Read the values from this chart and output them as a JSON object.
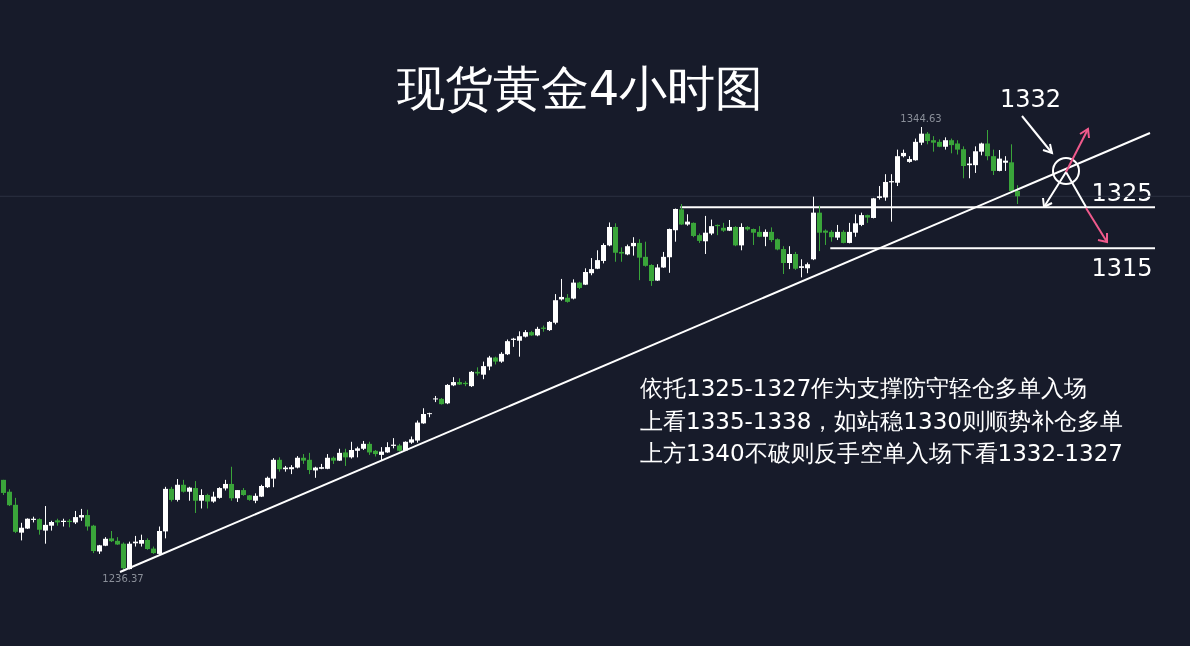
{
  "chart_data": {
    "type": "candlestick",
    "title": "现货黄金4小时图",
    "categories": [
      null,
      null,
      null,
      null,
      null,
      null,
      null,
      null,
      null,
      null,
      null,
      null,
      null,
      null,
      null,
      null,
      null,
      null,
      null,
      null,
      null,
      null,
      null,
      null,
      null,
      null,
      null,
      null,
      null,
      null,
      null,
      null,
      null,
      null,
      null,
      null,
      null,
      null,
      null,
      null,
      null,
      null,
      null,
      null,
      null,
      null,
      null,
      null,
      null,
      null,
      null,
      null,
      null,
      null,
      null,
      null,
      null,
      null,
      null,
      null,
      null,
      null,
      null,
      null,
      null,
      null,
      null,
      null,
      null,
      null,
      null,
      null,
      null,
      null,
      null,
      null,
      null,
      null,
      null,
      null,
      null,
      null,
      null,
      null,
      null,
      null,
      null,
      null,
      null,
      null,
      null,
      null,
      null,
      null,
      null,
      null,
      null,
      null,
      null,
      null,
      null,
      null,
      null,
      null,
      null,
      null,
      null,
      null,
      null,
      null,
      null,
      null,
      null,
      null,
      null,
      null,
      null,
      null,
      null,
      null,
      null,
      null,
      null,
      null,
      null,
      null,
      null,
      null,
      null,
      null,
      null,
      null,
      null,
      null,
      null,
      null,
      null,
      null,
      null,
      null,
      null,
      null,
      null,
      null,
      null,
      null,
      null,
      null,
      null,
      null,
      null,
      null,
      null,
      null,
      null,
      null,
      null,
      null,
      null,
      null,
      null,
      null,
      null,
      null,
      null,
      null,
      null,
      null,
      null,
      null
    ],
    "ohlc": [
      [
        1258.4,
        1258.4,
        1254.7,
        1255.2
      ],
      [
        1255.5,
        1256.1,
        1252.0,
        1252.2
      ],
      [
        1252.3,
        1254.0,
        1245.4,
        1245.7
      ],
      [
        1245.5,
        1247.9,
        1243.6,
        1246.7
      ],
      [
        1246.5,
        1249.0,
        1246.4,
        1248.9
      ],
      [
        1248.6,
        1249.4,
        1248.0,
        1248.9
      ],
      [
        1248.8,
        1249.0,
        1245.0,
        1246.2
      ],
      [
        1246.0,
        1252.0,
        1242.8,
        1247.4
      ],
      [
        1247.2,
        1248.4,
        1246.0,
        1248.1
      ],
      [
        1248.5,
        1248.9,
        1247.2,
        1248.0
      ],
      [
        1248.1,
        1248.9,
        1247.0,
        1248.4
      ],
      [
        1248.4,
        1248.8,
        1246.8,
        1248.1
      ],
      [
        1248.0,
        1250.8,
        1247.6,
        1249.3
      ],
      [
        1249.2,
        1251.3,
        1248.4,
        1249.8
      ],
      [
        1249.8,
        1251.1,
        1246.0,
        1247.0
      ],
      [
        1247.2,
        1247.4,
        1240.5,
        1241.0
      ],
      [
        1240.9,
        1242.5,
        1240.3,
        1242.4
      ],
      [
        1242.3,
        1244.4,
        1242.2,
        1244.0
      ],
      [
        1244.1,
        1245.9,
        1243.2,
        1243.4
      ],
      [
        1243.5,
        1244.4,
        1242.5,
        1242.6
      ],
      [
        1242.8,
        1243.1,
        1236.37,
        1236.8
      ],
      [
        1236.6,
        1243.3,
        1236.5,
        1242.8
      ],
      [
        1242.9,
        1244.7,
        1242.1,
        1243.3
      ],
      [
        1242.8,
        1245.0,
        1242.1,
        1243.7
      ],
      [
        1243.7,
        1244.1,
        1241.3,
        1241.5
      ],
      [
        1241.6,
        1242.1,
        1240.3,
        1240.5
      ],
      [
        1240.3,
        1247.0,
        1239.8,
        1245.9
      ],
      [
        1245.8,
        1256.7,
        1244.1,
        1256.2
      ],
      [
        1256.2,
        1256.7,
        1253.1,
        1253.5
      ],
      [
        1253.5,
        1258.6,
        1253.1,
        1257.2
      ],
      [
        1257.2,
        1258.4,
        1255.3,
        1255.5
      ],
      [
        1255.5,
        1256.7,
        1253.3,
        1256.5
      ],
      [
        1256.4,
        1258.1,
        1250.3,
        1253.3
      ],
      [
        1253.3,
        1256.1,
        1251.4,
        1254.7
      ],
      [
        1254.7,
        1255.0,
        1251.4,
        1253.1
      ],
      [
        1253.1,
        1255.5,
        1252.8,
        1254.3
      ],
      [
        1254.0,
        1256.6,
        1253.8,
        1256.4
      ],
      [
        1256.3,
        1258.4,
        1255.8,
        1257.4
      ],
      [
        1257.4,
        1261.6,
        1253.3,
        1253.9
      ],
      [
        1253.9,
        1255.9,
        1253.0,
        1255.9
      ],
      [
        1255.9,
        1256.4,
        1254.5,
        1254.7
      ],
      [
        1254.6,
        1254.7,
        1253.3,
        1253.5
      ],
      [
        1253.3,
        1255.1,
        1252.7,
        1254.5
      ],
      [
        1254.3,
        1257.2,
        1254.2,
        1256.9
      ],
      [
        1256.6,
        1259.2,
        1256.4,
        1258.9
      ],
      [
        1258.7,
        1263.7,
        1256.6,
        1263.3
      ],
      [
        1263.3,
        1263.9,
        1260.4,
        1261.0
      ],
      [
        1261.0,
        1261.8,
        1260.4,
        1261.4
      ],
      [
        1261.0,
        1262.0,
        1259.8,
        1261.5
      ],
      [
        1261.4,
        1264.2,
        1261.2,
        1263.8
      ],
      [
        1263.8,
        1264.7,
        1262.3,
        1263.1
      ],
      [
        1263.3,
        1265.0,
        1259.8,
        1260.8
      ],
      [
        1260.7,
        1261.6,
        1258.9,
        1261.4
      ],
      [
        1261.1,
        1262.3,
        1261.0,
        1261.5
      ],
      [
        1261.1,
        1264.7,
        1261.0,
        1263.8
      ],
      [
        1263.8,
        1264.1,
        1262.3,
        1263.1
      ],
      [
        1263.1,
        1266.0,
        1263.0,
        1265.0
      ],
      [
        1265.1,
        1266.0,
        1261.8,
        1263.9
      ],
      [
        1263.9,
        1267.7,
        1263.6,
        1265.7
      ],
      [
        1265.5,
        1266.5,
        1263.9,
        1266.1
      ],
      [
        1266.0,
        1267.9,
        1265.7,
        1267.2
      ],
      [
        1267.2,
        1267.7,
        1264.5,
        1265.1
      ],
      [
        1265.5,
        1265.7,
        1264.1,
        1264.7
      ],
      [
        1264.5,
        1266.4,
        1263.1,
        1265.3
      ],
      [
        1265.1,
        1267.6,
        1265.0,
        1266.4
      ],
      [
        1266.7,
        1268.6,
        1266.1,
        1267.0
      ],
      [
        1266.8,
        1267.2,
        1265.3,
        1265.5
      ],
      [
        1265.6,
        1267.8,
        1265.5,
        1267.7
      ],
      [
        1267.5,
        1269.0,
        1267.2,
        1268.3
      ],
      [
        1268.0,
        1272.9,
        1267.5,
        1272.4
      ],
      [
        1272.2,
        1275.9,
        1272.1,
        1274.5
      ],
      [
        1274.5,
        1274.8,
        1273.7,
        1274.7
      ],
      [
        1278.1,
        1278.9,
        1277.4,
        1278.3
      ],
      [
        1278.2,
        1278.4,
        1276.8,
        1276.9
      ],
      [
        1277.1,
        1281.8,
        1276.9,
        1281.6
      ],
      [
        1281.5,
        1283.5,
        1281.3,
        1282.3
      ],
      [
        1282.3,
        1283.2,
        1281.6,
        1281.7
      ],
      [
        1282.1,
        1282.5,
        1281.3,
        1281.8
      ],
      [
        1281.3,
        1285.0,
        1281.1,
        1284.8
      ],
      [
        1284.8,
        1285.9,
        1283.9,
        1284.4
      ],
      [
        1284.1,
        1287.3,
        1283.0,
        1286.2
      ],
      [
        1286.1,
        1288.7,
        1285.2,
        1288.3
      ],
      [
        1288.3,
        1288.5,
        1286.6,
        1287.3
      ],
      [
        1287.3,
        1289.6,
        1287.0,
        1289.2
      ],
      [
        1289.1,
        1292.7,
        1288.9,
        1292.3
      ],
      [
        1292.6,
        1293.1,
        1290.9,
        1292.9
      ],
      [
        1292.4,
        1294.7,
        1288.5,
        1293.5
      ],
      [
        1293.4,
        1295.0,
        1293.2,
        1294.5
      ],
      [
        1294.5,
        1294.8,
        1293.6,
        1293.7
      ],
      [
        1293.7,
        1295.8,
        1293.5,
        1295.3
      ],
      [
        1295.6,
        1296.1,
        1294.6,
        1295.3
      ],
      [
        1295.0,
        1297.2,
        1294.8,
        1297.0
      ],
      [
        1296.8,
        1303.8,
        1296.4,
        1302.3
      ],
      [
        1302.5,
        1307.5,
        1302.2,
        1303.1
      ],
      [
        1302.9,
        1303.8,
        1301.7,
        1301.9
      ],
      [
        1302.7,
        1307.4,
        1302.5,
        1306.6
      ],
      [
        1306.6,
        1306.8,
        1305.0,
        1305.3
      ],
      [
        1306.1,
        1310.1,
        1306.0,
        1309.2
      ],
      [
        1308.9,
        1312.6,
        1308.4,
        1309.9
      ],
      [
        1310.0,
        1314.5,
        1309.9,
        1312.1
      ],
      [
        1311.9,
        1316.2,
        1311.3,
        1315.8
      ],
      [
        1315.7,
        1321.3,
        1315.5,
        1320.2
      ],
      [
        1320.2,
        1321.1,
        1311.7,
        1313.9
      ],
      [
        1314.1,
        1315.2,
        1311.7,
        1313.7
      ],
      [
        1313.5,
        1315.9,
        1313.3,
        1315.5
      ],
      [
        1315.5,
        1317.7,
        1313.2,
        1316.3
      ],
      [
        1316.3,
        1317.2,
        1307.2,
        1312.7
      ],
      [
        1312.9,
        1316.6,
        1310.5,
        1310.7
      ],
      [
        1310.9,
        1311.1,
        1305.8,
        1307.0
      ],
      [
        1307.1,
        1311.1,
        1307.0,
        1310.3
      ],
      [
        1310.3,
        1314.1,
        1310.2,
        1312.9
      ],
      [
        1312.8,
        1319.8,
        1309.0,
        1319.7
      ],
      [
        1319.4,
        1324.7,
        1316.6,
        1324.6
      ],
      [
        1324.5,
        1325.8,
        1320.7,
        1320.8
      ],
      [
        1320.8,
        1323.3,
        1320.5,
        1321.5
      ],
      [
        1321.2,
        1321.3,
        1317.7,
        1318.0
      ],
      [
        1318.2,
        1318.6,
        1316.3,
        1316.8
      ],
      [
        1316.7,
        1322.9,
        1313.6,
        1318.8
      ],
      [
        1318.6,
        1322.0,
        1318.2,
        1320.4
      ],
      [
        1320.7,
        1320.8,
        1318.2,
        1320.4
      ],
      [
        1320.0,
        1321.2,
        1319.0,
        1319.3
      ],
      [
        1319.3,
        1321.9,
        1319.2,
        1320.2
      ],
      [
        1320.2,
        1320.4,
        1315.5,
        1315.7
      ],
      [
        1315.7,
        1321.1,
        1314.5,
        1320.2
      ],
      [
        1320.2,
        1320.4,
        1319.3,
        1319.6
      ],
      [
        1319.7,
        1319.8,
        1315.8,
        1318.8
      ],
      [
        1319.0,
        1320.4,
        1317.7,
        1317.8
      ],
      [
        1317.8,
        1319.6,
        1315.5,
        1319.0
      ],
      [
        1319.0,
        1320.1,
        1316.5,
        1317.0
      ],
      [
        1317.2,
        1317.4,
        1314.5,
        1314.7
      ],
      [
        1314.8,
        1315.5,
        1308.7,
        1311.4
      ],
      [
        1311.4,
        1315.5,
        1309.9,
        1313.6
      ],
      [
        1313.6,
        1314.1,
        1309.7,
        1310.0
      ],
      [
        1310.2,
        1312.3,
        1307.9,
        1310.6
      ],
      [
        1310.1,
        1311.5,
        1308.9,
        1311.1
      ],
      [
        1312.3,
        1327.6,
        1312.1,
        1323.7
      ],
      [
        1323.7,
        1325.4,
        1314.3,
        1318.8
      ],
      [
        1319.3,
        1319.6,
        1315.8,
        1318.8
      ],
      [
        1319.0,
        1319.4,
        1316.6,
        1317.7
      ],
      [
        1317.6,
        1320.7,
        1317.0,
        1319.0
      ],
      [
        1319.0,
        1319.4,
        1316.2,
        1316.3
      ],
      [
        1316.3,
        1321.2,
        1316.2,
        1319.0
      ],
      [
        1318.8,
        1323.3,
        1317.8,
        1321.1
      ],
      [
        1320.7,
        1323.7,
        1320.4,
        1323.1
      ],
      [
        1323.1,
        1323.2,
        1321.2,
        1322.5
      ],
      [
        1322.4,
        1327.3,
        1322.3,
        1327.2
      ],
      [
        1327.3,
        1330.2,
        1326.9,
        1327.7
      ],
      [
        1327.4,
        1333.1,
        1326.6,
        1331.2
      ],
      [
        1331.1,
        1333.1,
        1321.5,
        1331.4
      ],
      [
        1331.0,
        1339.1,
        1330.2,
        1337.5
      ],
      [
        1337.5,
        1339.1,
        1337.2,
        1338.3
      ],
      [
        1336.1,
        1337.5,
        1335.9,
        1336.8
      ],
      [
        1336.5,
        1341.8,
        1336.4,
        1341.0
      ],
      [
        1340.8,
        1344.63,
        1340.2,
        1343.0
      ],
      [
        1343.0,
        1343.4,
        1340.4,
        1341.2
      ],
      [
        1341.4,
        1342.4,
        1338.6,
        1340.8
      ],
      [
        1341.0,
        1341.6,
        1339.7,
        1339.8
      ],
      [
        1339.8,
        1342.1,
        1339.1,
        1341.4
      ],
      [
        1341.4,
        1341.8,
        1338.2,
        1340.2
      ],
      [
        1340.6,
        1341.4,
        1337.9,
        1339.1
      ],
      [
        1339.2,
        1339.9,
        1332.1,
        1335.1
      ],
      [
        1335.3,
        1337.3,
        1332.1,
        1335.7
      ],
      [
        1335.3,
        1339.9,
        1333.4,
        1338.7
      ],
      [
        1338.6,
        1340.8,
        1337.7,
        1340.6
      ],
      [
        1340.6,
        1343.9,
        1336.5,
        1337.5
      ],
      [
        1337.5,
        1339.1,
        1332.9,
        1333.9
      ],
      [
        1333.9,
        1339.0,
        1333.8,
        1336.9
      ],
      [
        1335.9,
        1337.5,
        1333.9,
        1336.4
      ],
      [
        1336.0,
        1340.4,
        1328.8,
        1329.0
      ],
      [
        1329.0,
        1330.4,
        1325.8,
        1327.7
      ]
    ],
    "colors": [
      "#3aa53a",
      "#3aa53a",
      "#3aa53a",
      "#ffffff",
      "#ffffff",
      "#ffffff",
      "#3aa53a",
      "#ffffff",
      "#ffffff",
      "#3aa53a",
      "#ffffff",
      "#3aa53a",
      "#ffffff",
      "#ffffff",
      "#3aa53a",
      "#3aa53a",
      "#ffffff",
      "#ffffff",
      "#3aa53a",
      "#3aa53a",
      "#3aa53a",
      "#ffffff",
      "#ffffff",
      "#ffffff",
      "#3aa53a",
      "#3aa53a",
      "#ffffff",
      "#ffffff",
      "#3aa53a",
      "#ffffff",
      "#3aa53a",
      "#ffffff",
      "#3aa53a",
      "#ffffff",
      "#3aa53a",
      "#ffffff",
      "#ffffff",
      "#ffffff",
      "#3aa53a",
      "#ffffff",
      "#3aa53a",
      "#3aa53a",
      "#ffffff",
      "#ffffff",
      "#ffffff",
      "#ffffff",
      "#3aa53a",
      "#ffffff",
      "#ffffff",
      "#ffffff",
      "#3aa53a",
      "#3aa53a",
      "#ffffff",
      "#ffffff",
      "#ffffff",
      "#3aa53a",
      "#ffffff",
      "#3aa53a",
      "#ffffff",
      "#ffffff",
      "#ffffff",
      "#3aa53a",
      "#3aa53a",
      "#ffffff",
      "#ffffff",
      "#ffffff",
      "#3aa53a",
      "#ffffff",
      "#ffffff",
      "#ffffff",
      "#ffffff",
      "#ffffff",
      "#ffffff",
      "#3aa53a",
      "#ffffff",
      "#ffffff",
      "#3aa53a",
      "#3aa53a",
      "#ffffff",
      "#3aa53a",
      "#ffffff",
      "#ffffff",
      "#3aa53a",
      "#ffffff",
      "#ffffff",
      "#ffffff",
      "#ffffff",
      "#ffffff",
      "#3aa53a",
      "#ffffff",
      "#3aa53a",
      "#ffffff",
      "#ffffff",
      "#ffffff",
      "#3aa53a",
      "#ffffff",
      "#3aa53a",
      "#ffffff",
      "#ffffff",
      "#ffffff",
      "#ffffff",
      "#ffffff",
      "#3aa53a",
      "#3aa53a",
      "#ffffff",
      "#ffffff",
      "#3aa53a",
      "#3aa53a",
      "#3aa53a",
      "#ffffff",
      "#ffffff",
      "#ffffff",
      "#ffffff",
      "#3aa53a",
      "#ffffff",
      "#3aa53a",
      "#3aa53a",
      "#ffffff",
      "#ffffff",
      "#3aa53a",
      "#3aa53a",
      "#ffffff",
      "#3aa53a",
      "#ffffff",
      "#3aa53a",
      "#3aa53a",
      "#3aa53a",
      "#ffffff",
      "#3aa53a",
      "#3aa53a",
      "#3aa53a",
      "#ffffff",
      "#3aa53a",
      "#ffffff",
      "#ffffff",
      "#ffffff",
      "#3aa53a",
      "#3aa53a",
      "#3aa53a",
      "#ffffff",
      "#3aa53a",
      "#ffffff",
      "#ffffff",
      "#ffffff",
      "#3aa53a",
      "#ffffff",
      "#ffffff",
      "#ffffff",
      "#ffffff",
      "#ffffff",
      "#ffffff",
      "#ffffff",
      "#ffffff",
      "#ffffff",
      "#3aa53a",
      "#3aa53a",
      "#3aa53a",
      "#ffffff",
      "#3aa53a",
      "#3aa53a",
      "#3aa53a",
      "#ffffff",
      "#ffffff",
      "#ffffff",
      "#3aa53a",
      "#3aa53a",
      "#ffffff",
      "#ffffff",
      "#3aa53a",
      "#3aa53a"
    ],
    "ref_lines": [
      {
        "axis": "y",
        "value": 1325,
        "label": "1325",
        "color": "#ffffff"
      },
      {
        "axis": "y",
        "value": 1315,
        "label": "1315",
        "color": "#ffffff"
      },
      {
        "axis": "y",
        "value": 1327.7,
        "color": "#2c3142"
      }
    ],
    "annotations": [
      {
        "text": "1344.63",
        "y": 1344.63
      },
      {
        "text": "1236.37",
        "y": 1236.37
      },
      "1332",
      "依托1325-1327作为支撑防守轻仓多单入场",
      "上看1335-1338，如站稳1330则顺势补仓多单",
      "上方1340不破则反手空单入场下看1332-1327"
    ],
    "tick_labels": false
  }
}
